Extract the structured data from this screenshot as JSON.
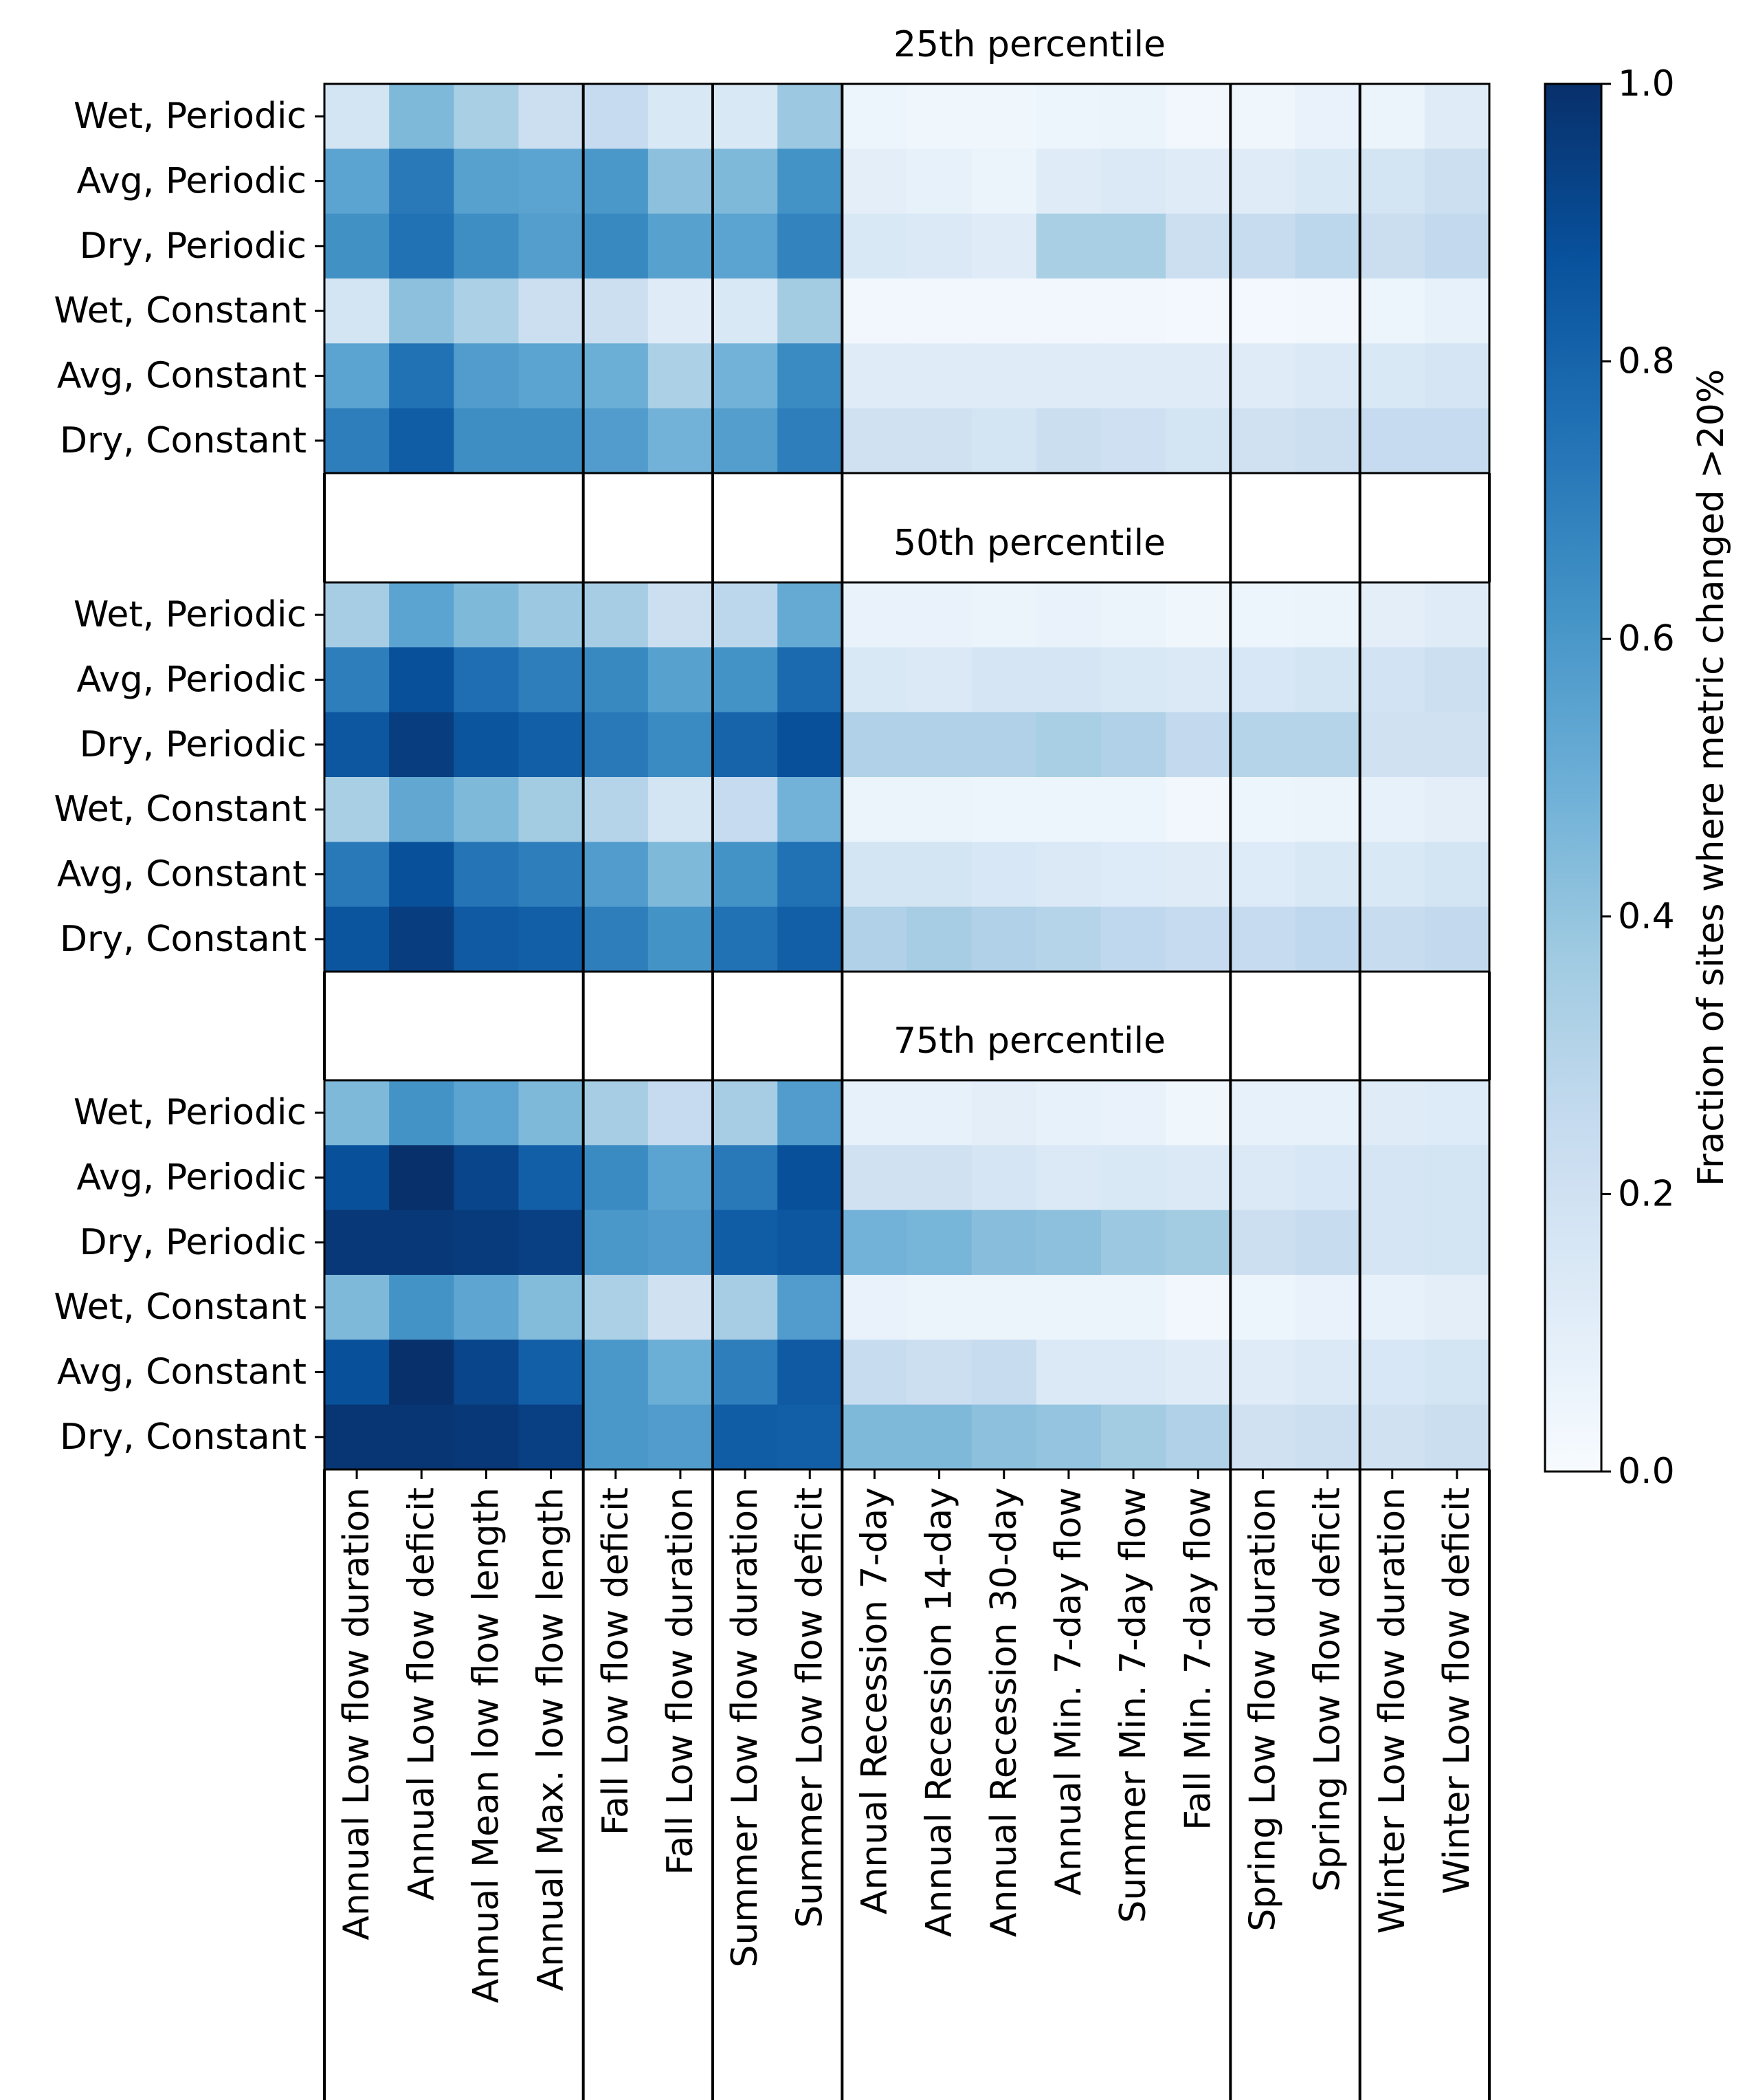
{
  "chart_data": {
    "type": "heatmap",
    "colormap": "Blues",
    "vmin": 0.0,
    "vmax": 1.0,
    "colorbar_label": "Fraction of sites where metric changed >20%",
    "colorbar_ticks": [
      "0.0",
      "0.2",
      "0.4",
      "0.6",
      "0.8",
      "1.0"
    ],
    "x_labels": [
      "Annual Low flow duration",
      "Annual Low flow deficit",
      "Annual Mean low flow length",
      "Annual Max. low flow length",
      "Fall Low flow deficit",
      "Fall Low flow duration",
      "Summer Low flow duration",
      "Summer Low flow deficit",
      "Annual Recession 7-day",
      "Annual Recession 14-day",
      "Annual Recession 30-day",
      "Annual Min. 7-day flow",
      "Summer Min. 7-day flow",
      "Fall Min. 7-day flow",
      "Spring Low flow duration",
      "Spring Low flow deficit",
      "Winter Low flow duration",
      "Winter Low flow deficit"
    ],
    "group_boundaries_after_column": [
      4,
      6,
      8,
      14,
      16
    ],
    "y_labels": [
      "Wet, Periodic",
      "Avg, Periodic",
      "Dry, Periodic",
      "Wet, Constant",
      "Avg, Constant",
      "Dry, Constant"
    ],
    "panels": [
      {
        "title": "25th percentile",
        "values": [
          [
            0.18,
            0.45,
            0.34,
            0.22,
            0.25,
            0.15,
            0.15,
            0.38,
            0.05,
            0.04,
            0.04,
            0.05,
            0.06,
            0.03,
            0.04,
            0.07,
            0.06,
            0.12
          ],
          [
            0.55,
            0.72,
            0.56,
            0.55,
            0.6,
            0.42,
            0.45,
            0.62,
            0.1,
            0.08,
            0.06,
            0.12,
            0.14,
            0.12,
            0.12,
            0.15,
            0.18,
            0.22
          ],
          [
            0.63,
            0.75,
            0.64,
            0.57,
            0.66,
            0.56,
            0.55,
            0.68,
            0.15,
            0.14,
            0.12,
            0.34,
            0.34,
            0.22,
            0.24,
            0.28,
            0.23,
            0.26
          ],
          [
            0.18,
            0.42,
            0.33,
            0.22,
            0.22,
            0.12,
            0.15,
            0.36,
            0.03,
            0.03,
            0.03,
            0.03,
            0.03,
            0.02,
            0.02,
            0.03,
            0.05,
            0.08
          ],
          [
            0.55,
            0.75,
            0.58,
            0.55,
            0.5,
            0.33,
            0.48,
            0.65,
            0.12,
            0.12,
            0.12,
            0.12,
            0.12,
            0.12,
            0.12,
            0.14,
            0.15,
            0.17
          ],
          [
            0.7,
            0.83,
            0.64,
            0.64,
            0.58,
            0.48,
            0.57,
            0.7,
            0.2,
            0.2,
            0.18,
            0.23,
            0.21,
            0.18,
            0.2,
            0.22,
            0.25,
            0.25
          ]
        ]
      },
      {
        "title": "50th percentile",
        "values": [
          [
            0.35,
            0.55,
            0.45,
            0.38,
            0.35,
            0.22,
            0.28,
            0.52,
            0.07,
            0.07,
            0.06,
            0.07,
            0.06,
            0.04,
            0.05,
            0.06,
            0.1,
            0.12
          ],
          [
            0.7,
            0.88,
            0.76,
            0.7,
            0.66,
            0.56,
            0.62,
            0.78,
            0.15,
            0.14,
            0.17,
            0.17,
            0.15,
            0.14,
            0.16,
            0.18,
            0.19,
            0.22
          ],
          [
            0.85,
            0.95,
            0.86,
            0.82,
            0.72,
            0.65,
            0.8,
            0.88,
            0.32,
            0.32,
            0.32,
            0.34,
            0.32,
            0.26,
            0.3,
            0.3,
            0.2,
            0.2
          ],
          [
            0.34,
            0.53,
            0.45,
            0.36,
            0.3,
            0.18,
            0.25,
            0.48,
            0.06,
            0.06,
            0.05,
            0.05,
            0.05,
            0.03,
            0.05,
            0.06,
            0.08,
            0.1
          ],
          [
            0.72,
            0.88,
            0.74,
            0.7,
            0.58,
            0.45,
            0.62,
            0.75,
            0.18,
            0.18,
            0.16,
            0.14,
            0.13,
            0.12,
            0.13,
            0.15,
            0.15,
            0.18
          ],
          [
            0.86,
            0.95,
            0.84,
            0.82,
            0.7,
            0.62,
            0.75,
            0.82,
            0.32,
            0.35,
            0.32,
            0.3,
            0.27,
            0.25,
            0.25,
            0.27,
            0.24,
            0.26
          ]
        ]
      },
      {
        "title": "75th percentile",
        "values": [
          [
            0.45,
            0.62,
            0.55,
            0.45,
            0.35,
            0.25,
            0.35,
            0.58,
            0.08,
            0.08,
            0.1,
            0.08,
            0.07,
            0.04,
            0.08,
            0.08,
            0.12,
            0.13
          ],
          [
            0.88,
            1.0,
            0.92,
            0.82,
            0.65,
            0.55,
            0.72,
            0.88,
            0.2,
            0.2,
            0.17,
            0.14,
            0.15,
            0.14,
            0.14,
            0.16,
            0.17,
            0.18
          ],
          [
            0.97,
            0.97,
            0.96,
            0.94,
            0.6,
            0.58,
            0.83,
            0.85,
            0.48,
            0.47,
            0.43,
            0.42,
            0.38,
            0.36,
            0.22,
            0.24,
            0.17,
            0.18
          ],
          [
            0.45,
            0.62,
            0.54,
            0.44,
            0.33,
            0.2,
            0.35,
            0.58,
            0.07,
            0.06,
            0.06,
            0.06,
            0.06,
            0.03,
            0.05,
            0.07,
            0.08,
            0.1
          ],
          [
            0.88,
            1.0,
            0.92,
            0.82,
            0.6,
            0.5,
            0.7,
            0.84,
            0.24,
            0.22,
            0.24,
            0.14,
            0.14,
            0.12,
            0.12,
            0.14,
            0.16,
            0.18
          ],
          [
            0.98,
            0.98,
            0.97,
            0.94,
            0.6,
            0.58,
            0.83,
            0.82,
            0.45,
            0.45,
            0.42,
            0.4,
            0.36,
            0.32,
            0.2,
            0.22,
            0.2,
            0.23
          ]
        ]
      }
    ]
  }
}
